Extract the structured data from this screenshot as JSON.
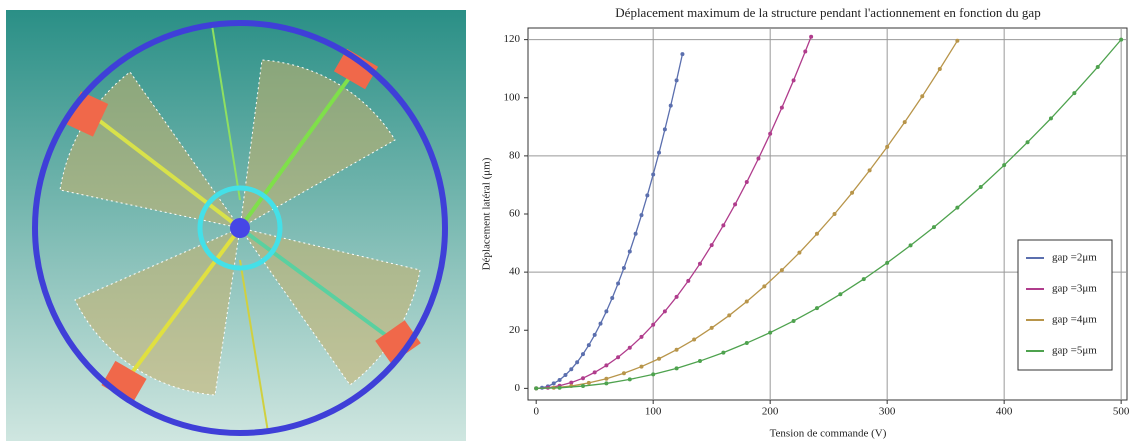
{
  "chart_data": {
    "type": "line",
    "title": "Déplacement maximum de la structure pendant l'actionnement en fonction du gap",
    "x_label": "Tension de commande (V)",
    "y_label": "Déplacement latéral (μm)",
    "xlim": [
      -7,
      505
    ],
    "ylim": [
      -4,
      124
    ],
    "xticks": [
      0,
      100,
      200,
      300,
      400,
      500
    ],
    "yticks": [
      0,
      20,
      40,
      60,
      80,
      100,
      120
    ],
    "grid": true,
    "legend": "lower right",
    "series": [
      {
        "name": "gap =2μm",
        "color": "#5b6fae",
        "x": [
          0,
          5,
          10,
          15,
          20,
          25,
          30,
          35,
          40,
          45,
          50,
          55,
          60,
          65,
          70,
          75,
          80,
          85,
          90,
          95,
          100,
          105,
          110,
          115,
          120,
          125
        ],
        "values": [
          0,
          0.2,
          0.7,
          1.7,
          2.9,
          4.6,
          6.6,
          9,
          11.8,
          14.9,
          18.4,
          22.3,
          26.5,
          31.1,
          36.1,
          41.4,
          47.1,
          53.2,
          59.6,
          66.4,
          73.6,
          81.1,
          89.1,
          97.3,
          106,
          115
        ]
      },
      {
        "name": "gap =3μm",
        "color": "#b03c8c",
        "x": [
          0,
          10,
          20,
          30,
          40,
          50,
          60,
          70,
          80,
          90,
          100,
          110,
          120,
          130,
          140,
          150,
          160,
          170,
          180,
          190,
          200,
          210,
          220,
          230,
          235
        ],
        "values": [
          0,
          0.2,
          0.9,
          2,
          3.5,
          5.5,
          7.9,
          10.7,
          14,
          17.7,
          21.9,
          26.5,
          31.5,
          37,
          42.9,
          49.3,
          56.1,
          63.3,
          71,
          79.1,
          87.6,
          96.6,
          106,
          115.9,
          121
        ]
      },
      {
        "name": "gap =4μm",
        "color": "#b8954a",
        "x": [
          0,
          15,
          30,
          45,
          60,
          75,
          90,
          105,
          120,
          135,
          150,
          165,
          180,
          195,
          210,
          225,
          240,
          255,
          270,
          285,
          300,
          315,
          330,
          345,
          360
        ],
        "values": [
          0,
          0.2,
          0.8,
          1.9,
          3.3,
          5.2,
          7.5,
          10.2,
          13.3,
          16.8,
          20.8,
          25.1,
          29.9,
          35.1,
          40.7,
          46.7,
          53.2,
          60,
          67.3,
          75,
          83.1,
          91.6,
          100.5,
          109.9,
          119.6
        ]
      },
      {
        "name": "gap =5μm",
        "color": "#4ea24e",
        "x": [
          0,
          20,
          40,
          60,
          80,
          100,
          120,
          140,
          160,
          180,
          200,
          220,
          240,
          260,
          280,
          300,
          320,
          340,
          360,
          380,
          400,
          420,
          440,
          460,
          480,
          500
        ],
        "values": [
          0,
          0.2,
          0.8,
          1.7,
          3.1,
          4.8,
          6.9,
          9.4,
          12.3,
          15.6,
          19.2,
          23.2,
          27.6,
          32.4,
          37.6,
          43.2,
          49.2,
          55.5,
          62.2,
          69.3,
          76.8,
          84.7,
          92.9,
          101.6,
          110.6,
          120
        ]
      }
    ]
  }
}
